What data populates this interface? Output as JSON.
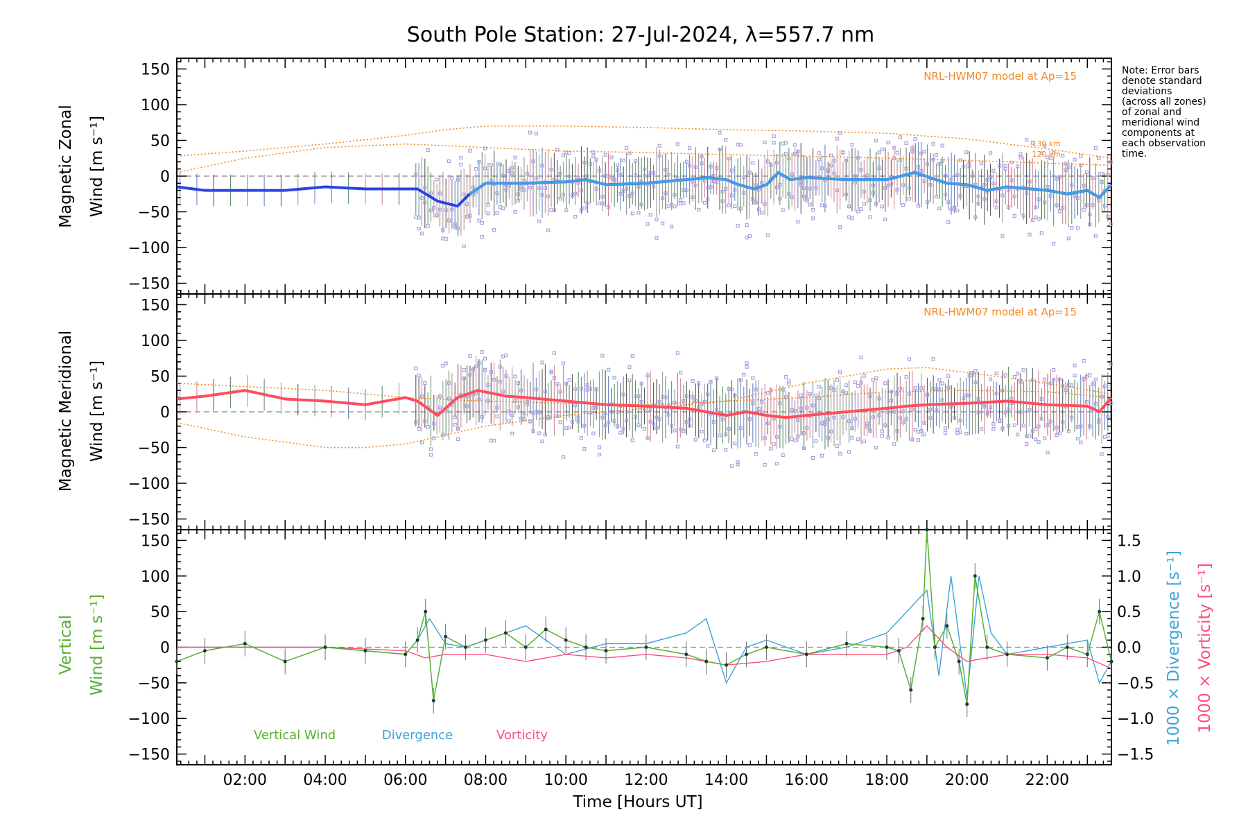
{
  "figure": {
    "title": "South Pole Station: 27-Jul-2024, λ=557.7 nm",
    "note": [
      "Note: Error bars",
      "denote standard",
      "deviations",
      "(across all zones)",
      "of zonal and",
      "meridional wind",
      "components at",
      "each observation",
      "time."
    ],
    "xlabel": "Time [Hours UT]",
    "model_label": "NRL-HWM07 model at Ap=15",
    "km_labels": [
      "130 km",
      "120 km"
    ],
    "ylabel_zonal": [
      "Magnetic Zonal",
      "Wind [m s⁻¹]"
    ],
    "ylabel_merid": [
      "Magnetic Meridional",
      "Wind [m s⁻¹]"
    ],
    "ylabel_vert": [
      "Vertical",
      "Wind [m s⁻¹]"
    ],
    "ylabel_div": "1000 × Divergence [s⁻¹]",
    "ylabel_vort": "1000 × Vorticity [s⁻¹]",
    "legend": [
      "Vertical Wind",
      "Divergence",
      "Vorticity"
    ],
    "colors": {
      "zonal": "#2a44e0",
      "zonal_late": "#3f9fe6",
      "meridional": "#ff4d5e",
      "vertical": "#55b030",
      "divergence": "#3aa4d8",
      "vorticity": "#ff4d7a",
      "model": "#f08a24",
      "scatter": "#a8a0dc"
    }
  },
  "chart_data": [
    {
      "type": "line",
      "title": "Magnetic Zonal Wind",
      "ylabel": "Magnetic Zonal Wind [m s⁻¹]",
      "xlim": [
        0.3,
        23.6
      ],
      "ylim": [
        -165,
        165
      ],
      "yticks": [
        -150,
        -100,
        -50,
        0,
        50,
        100,
        150
      ],
      "xticks": [
        2,
        4,
        6,
        8,
        10,
        12,
        14,
        16,
        18,
        20,
        22
      ],
      "xtick_labels": [
        "02:00",
        "04:00",
        "06:00",
        "08:00",
        "10:00",
        "12:00",
        "14:00",
        "16:00",
        "18:00",
        "20:00",
        "22:00"
      ],
      "series": [
        {
          "name": "Zonal wind (mean)",
          "x": [
            0.3,
            1,
            2,
            3,
            4,
            5,
            6,
            6.3,
            6.8,
            7.3,
            7.6,
            8,
            9,
            10,
            10.5,
            11,
            12,
            13,
            13.5,
            14,
            14.3,
            14.7,
            15,
            15.3,
            15.6,
            16,
            17,
            18,
            18.7,
            19.5,
            20,
            20.5,
            21,
            22,
            22.5,
            23,
            23.3,
            23.6
          ],
          "y": [
            -15,
            -20,
            -20,
            -20,
            -15,
            -18,
            -18,
            -18,
            -35,
            -42,
            -25,
            -10,
            -10,
            -8,
            -5,
            -12,
            -10,
            -5,
            -2,
            -5,
            -12,
            -18,
            -12,
            5,
            -5,
            -2,
            -5,
            -5,
            5,
            -10,
            -12,
            -20,
            -15,
            -20,
            -25,
            -20,
            -30,
            -12
          ]
        },
        {
          "name": "HWM07 130 km",
          "x": [
            0.3,
            2,
            4,
            6,
            7,
            8,
            10,
            12,
            14,
            16,
            18,
            20,
            22,
            23.6
          ],
          "y": [
            28,
            35,
            45,
            57,
            65,
            70,
            70,
            68,
            65,
            63,
            60,
            52,
            38,
            25
          ]
        },
        {
          "name": "HWM07 120 km",
          "x": [
            0.3,
            2,
            4,
            6,
            8,
            10,
            12,
            14,
            16,
            18,
            20,
            22,
            23.6
          ],
          "y": [
            5,
            25,
            40,
            45,
            40,
            35,
            33,
            30,
            28,
            25,
            22,
            18,
            15
          ]
        }
      ]
    },
    {
      "type": "line",
      "title": "Magnetic Meridional Wind",
      "ylabel": "Magnetic Meridional Wind [m s⁻¹]",
      "xlim": [
        0.3,
        23.6
      ],
      "ylim": [
        -165,
        165
      ],
      "yticks": [
        -150,
        -100,
        -50,
        0,
        50,
        100,
        150
      ],
      "series": [
        {
          "name": "Meridional wind (mean)",
          "x": [
            0.3,
            1,
            2,
            3,
            4,
            5,
            6,
            6.3,
            6.8,
            7.3,
            7.8,
            8.5,
            9,
            10,
            11,
            12,
            13,
            13.5,
            14,
            14.5,
            15,
            15.5,
            16,
            17,
            18,
            18.5,
            19,
            20,
            21,
            22,
            23,
            23.3,
            23.6
          ],
          "y": [
            18,
            22,
            30,
            18,
            15,
            10,
            20,
            15,
            -5,
            20,
            30,
            22,
            20,
            15,
            10,
            8,
            5,
            0,
            -5,
            0,
            -5,
            -8,
            -5,
            0,
            5,
            8,
            10,
            12,
            15,
            10,
            8,
            0,
            20
          ]
        },
        {
          "name": "HWM07 upper",
          "x": [
            0.3,
            4,
            6,
            8,
            10,
            12,
            14,
            16,
            18,
            19,
            20,
            22,
            23.6
          ],
          "y": [
            40,
            30,
            20,
            15,
            12,
            10,
            15,
            40,
            60,
            62,
            55,
            40,
            25
          ]
        },
        {
          "name": "HWM07 lower",
          "x": [
            0.3,
            2,
            4,
            5,
            6,
            8,
            10,
            12,
            13,
            14,
            16,
            18,
            20,
            22,
            23.6
          ],
          "y": [
            -15,
            -35,
            -50,
            -50,
            -45,
            -20,
            -5,
            5,
            10,
            15,
            20,
            28,
            30,
            28,
            20
          ]
        }
      ]
    },
    {
      "type": "line",
      "title": "Vertical Wind, Divergence, Vorticity",
      "ylabel": "Vertical Wind [m s⁻¹]",
      "ylabel_right": "1000 × Divergence / Vorticity [s⁻¹]",
      "xlim": [
        0.3,
        23.6
      ],
      "ylim": [
        -165,
        165
      ],
      "yticks": [
        -150,
        -100,
        -50,
        0,
        50,
        100,
        150
      ],
      "ylim_right": [
        -1.65,
        1.65
      ],
      "yticks_right": [
        -1.5,
        -1.0,
        -0.5,
        0.0,
        0.5,
        1.0,
        1.5
      ],
      "ytick_labels_right": [
        "−1.5",
        "−1.0",
        "−0.5",
        "0.0",
        "0.5",
        "1.0",
        "1.5"
      ],
      "series": [
        {
          "name": "Vertical Wind",
          "axis": "left",
          "x": [
            0.3,
            1,
            2,
            3,
            4,
            5,
            6,
            6.3,
            6.5,
            6.7,
            7,
            7.5,
            8,
            8.5,
            9,
            9.5,
            10,
            10.5,
            11,
            12,
            13,
            13.5,
            14,
            14.5,
            15,
            16,
            17,
            18,
            18.3,
            18.6,
            18.9,
            19,
            19.2,
            19.5,
            19.8,
            20,
            20.2,
            20.5,
            21,
            22,
            22.5,
            23,
            23.3,
            23.6
          ],
          "y": [
            -20,
            -5,
            5,
            -20,
            0,
            -5,
            -10,
            10,
            50,
            -75,
            15,
            0,
            10,
            20,
            0,
            25,
            10,
            0,
            -5,
            0,
            -10,
            -20,
            -25,
            -10,
            0,
            -10,
            5,
            0,
            -5,
            -60,
            40,
            165,
            0,
            30,
            -20,
            -80,
            100,
            0,
            -10,
            -15,
            0,
            -10,
            50,
            -20
          ]
        },
        {
          "name": "Divergence",
          "axis": "right",
          "x": [
            0.3,
            2,
            4,
            6,
            6.3,
            6.6,
            7,
            7.5,
            8,
            9,
            10,
            11,
            12,
            13,
            13.5,
            14,
            14.5,
            15,
            16,
            17,
            18,
            18.5,
            19,
            19.3,
            19.6,
            20,
            20.3,
            20.6,
            21,
            22,
            23,
            23.3,
            23.6
          ],
          "y": [
            0.0,
            0.0,
            0.0,
            -0.1,
            0.1,
            0.4,
            0.05,
            0.0,
            0.1,
            0.3,
            -0.1,
            0.05,
            0.05,
            0.2,
            0.4,
            -0.5,
            0.0,
            0.1,
            -0.1,
            0.0,
            0.2,
            0.5,
            0.8,
            -0.4,
            1.0,
            -0.7,
            1.0,
            0.2,
            -0.1,
            0.0,
            0.1,
            -0.5,
            -0.2
          ]
        },
        {
          "name": "Vorticity",
          "axis": "right",
          "x": [
            0.3,
            2,
            4,
            6,
            6.5,
            7,
            8,
            9,
            10,
            11,
            12,
            13,
            14,
            15,
            16,
            17,
            18,
            18.5,
            19,
            19.5,
            20,
            21,
            22,
            23,
            23.6
          ],
          "y": [
            0.0,
            0.0,
            0.0,
            -0.05,
            -0.15,
            -0.1,
            -0.1,
            -0.2,
            -0.1,
            -0.15,
            -0.1,
            -0.15,
            -0.25,
            -0.2,
            -0.1,
            -0.1,
            -0.1,
            0.0,
            0.3,
            0.0,
            -0.2,
            -0.1,
            -0.1,
            -0.15,
            -0.3
          ]
        }
      ]
    }
  ]
}
